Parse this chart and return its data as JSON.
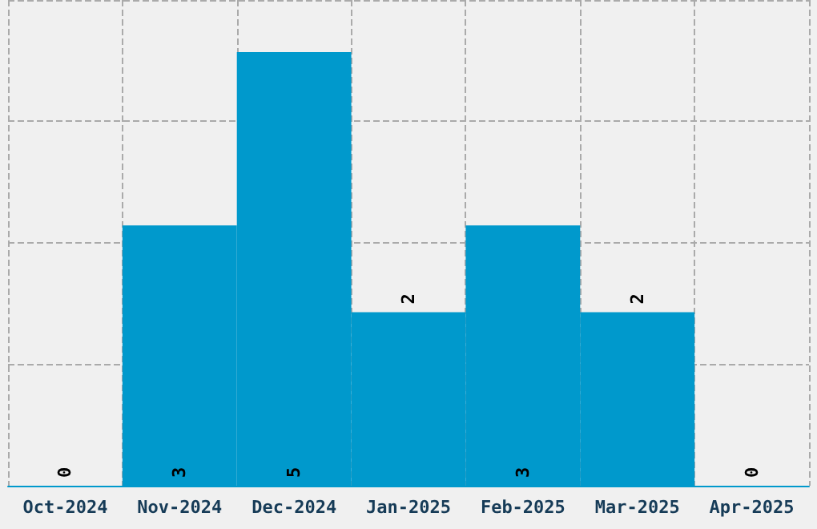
{
  "chart_data": {
    "type": "bar",
    "categories": [
      "Oct-2024",
      "Nov-2024",
      "Dec-2024",
      "Jan-2025",
      "Feb-2025",
      "Mar-2025",
      "Apr-2025"
    ],
    "values": [
      0,
      3,
      5,
      2,
      3,
      2,
      0
    ],
    "color": "#0099cc",
    "data_labels": true,
    "ylim": [
      0,
      5.6
    ],
    "yticks": [
      {
        "value": 0,
        "label": null
      },
      {
        "value": 1.4,
        "label": null
      },
      {
        "value": 2.8,
        "label": null
      },
      {
        "value": 4.2,
        "label": null
      },
      {
        "value": 5.6,
        "label": null
      }
    ],
    "grid": true,
    "tick_labels": "x"
  }
}
